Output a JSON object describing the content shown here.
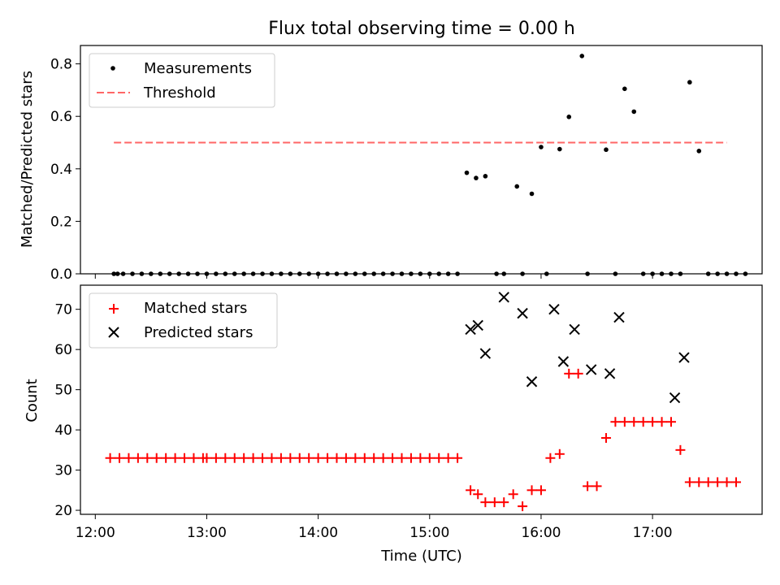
{
  "chart_data": [
    {
      "type": "scatter",
      "title": "Flux total observing time = 0.00 h",
      "xlabel": "",
      "ylabel": "Matched/Predicted stars",
      "ylim": [
        0,
        0.87
      ],
      "yticks": [
        "0.0",
        "0.2",
        "0.4",
        "0.6",
        "0.8"
      ],
      "legend_position": "top-left",
      "series": [
        {
          "name": "Measurements",
          "color": "#000000",
          "marker": "dot",
          "x": [
            "12:10",
            "12:12",
            "12:15",
            "12:20",
            "12:25",
            "12:30",
            "12:35",
            "12:40",
            "12:45",
            "12:50",
            "12:55",
            "13:00",
            "13:05",
            "13:10",
            "13:15",
            "13:20",
            "13:25",
            "13:30",
            "13:35",
            "13:40",
            "13:45",
            "13:50",
            "13:55",
            "14:00",
            "14:05",
            "14:10",
            "14:15",
            "14:20",
            "14:25",
            "14:30",
            "14:35",
            "14:40",
            "14:45",
            "14:50",
            "14:55",
            "15:00",
            "15:05",
            "15:10",
            "15:15",
            "15:20",
            "15:25",
            "15:30",
            "15:36",
            "15:40",
            "15:47",
            "15:50",
            "15:55",
            "16:00",
            "16:03",
            "16:10",
            "16:15",
            "16:22",
            "16:25",
            "16:35",
            "16:40",
            "16:45",
            "16:50",
            "16:55",
            "17:00",
            "17:05",
            "17:10",
            "17:15",
            "17:20",
            "17:25",
            "17:30",
            "17:35",
            "17:40",
            "17:45",
            "17:50"
          ],
          "y": [
            0,
            0,
            0,
            0,
            0,
            0,
            0,
            0,
            0,
            0,
            0,
            0,
            0,
            0,
            0,
            0,
            0,
            0,
            0,
            0,
            0,
            0,
            0,
            0,
            0,
            0,
            0,
            0,
            0,
            0,
            0,
            0,
            0,
            0,
            0,
            0,
            0,
            0,
            0,
            0.385,
            0.365,
            0.372,
            0,
            0,
            0.333,
            0,
            0.305,
            0.483,
            0,
            0.475,
            0.598,
            0.83,
            0,
            0.473,
            0,
            0.705,
            0.618,
            0,
            0,
            0,
            0,
            0,
            0.73,
            0.468,
            0,
            0,
            0,
            0,
            0
          ]
        },
        {
          "name": "Threshold",
          "color": "#ff6666",
          "line_style": "dashed",
          "x": [
            "12:10",
            "17:40"
          ],
          "y": [
            0.5,
            0.5
          ]
        }
      ]
    },
    {
      "type": "scatter",
      "title": "",
      "xlabel": "Time (UTC)",
      "ylabel": "Count",
      "ylim": [
        19,
        76
      ],
      "yticks": [
        "20",
        "30",
        "40",
        "50",
        "60",
        "70"
      ],
      "xticks": [
        "12:00",
        "13:00",
        "14:00",
        "15:00",
        "16:00",
        "17:00"
      ],
      "xlim": [
        "11:52",
        "17:59"
      ],
      "legend_position": "top-left",
      "series": [
        {
          "name": "Matched stars",
          "color": "#ff0000",
          "marker": "plus",
          "x": [
            "12:08",
            "12:13",
            "12:18",
            "12:23",
            "12:28",
            "12:33",
            "12:38",
            "12:43",
            "12:48",
            "12:53",
            "12:58",
            "13:00",
            "13:05",
            "13:10",
            "13:15",
            "13:20",
            "13:25",
            "13:30",
            "13:35",
            "13:40",
            "13:45",
            "13:50",
            "13:55",
            "14:00",
            "14:05",
            "14:10",
            "14:15",
            "14:20",
            "14:25",
            "14:30",
            "14:35",
            "14:40",
            "14:45",
            "14:50",
            "14:55",
            "15:00",
            "15:05",
            "15:10",
            "15:15",
            "15:22",
            "15:26",
            "15:30",
            "15:35",
            "15:40",
            "15:45",
            "15:50",
            "15:55",
            "16:00",
            "16:05",
            "16:10",
            "16:15",
            "16:20",
            "16:25",
            "16:30",
            "16:35",
            "16:40",
            "16:45",
            "16:50",
            "16:55",
            "17:00",
            "17:05",
            "17:10",
            "17:15",
            "17:20",
            "17:25",
            "17:30",
            "17:35",
            "17:40",
            "17:45"
          ],
          "y": [
            33,
            33,
            33,
            33,
            33,
            33,
            33,
            33,
            33,
            33,
            33,
            33,
            33,
            33,
            33,
            33,
            33,
            33,
            33,
            33,
            33,
            33,
            33,
            33,
            33,
            33,
            33,
            33,
            33,
            33,
            33,
            33,
            33,
            33,
            33,
            33,
            33,
            33,
            33,
            25,
            24,
            22,
            22,
            22,
            24,
            21,
            25,
            25,
            33,
            34,
            54,
            54,
            26,
            26,
            38,
            42,
            42,
            42,
            42,
            42,
            42,
            42,
            35,
            27,
            27,
            27,
            27,
            27,
            27
          ]
        },
        {
          "name": "Predicted stars",
          "color": "#000000",
          "marker": "x",
          "x": [
            "15:22",
            "15:26",
            "15:30",
            "15:40",
            "15:50",
            "15:55",
            "16:07",
            "16:12",
            "16:18",
            "16:27",
            "16:37",
            "16:42",
            "17:12",
            "17:17"
          ],
          "y": [
            65,
            66,
            59,
            73,
            69,
            52,
            70,
            57,
            65,
            55,
            54,
            68,
            48,
            58
          ]
        }
      ]
    }
  ]
}
